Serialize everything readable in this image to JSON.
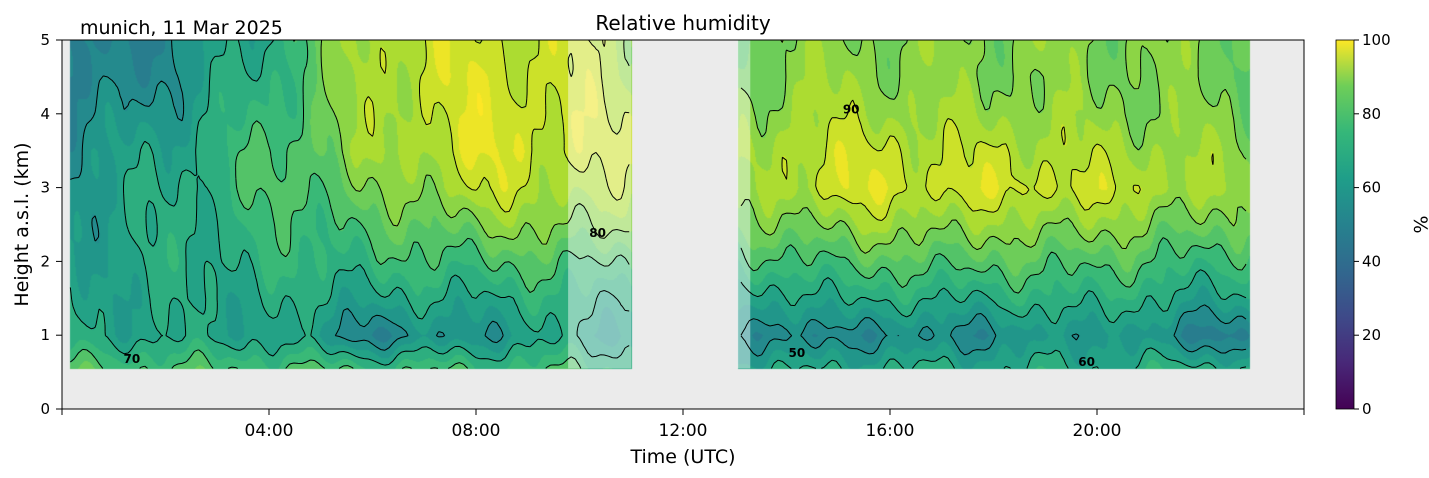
{
  "chart_data": {
    "type": "heatmap",
    "title": "Relative humidity",
    "corner_label": "munich, 11 Mar 2025",
    "xlabel": "Time (UTC)",
    "ylabel": "Height a.s.l. (km)",
    "xlim_hours": [
      0,
      24
    ],
    "ylim_km": [
      0,
      5
    ],
    "x_ticks": [
      {
        "hour": 0,
        "label": ""
      },
      {
        "hour": 4,
        "label": "04:00"
      },
      {
        "hour": 8,
        "label": "08:00"
      },
      {
        "hour": 12,
        "label": "12:00"
      },
      {
        "hour": 16,
        "label": "16:00"
      },
      {
        "hour": 20,
        "label": "20:00"
      },
      {
        "hour": 24,
        "label": ""
      }
    ],
    "y_ticks": [
      {
        "km": 0,
        "label": "0"
      },
      {
        "km": 1,
        "label": "1"
      },
      {
        "km": 2,
        "label": "2"
      },
      {
        "km": 3,
        "label": "3"
      },
      {
        "km": 4,
        "label": "4"
      },
      {
        "km": 5,
        "label": "5"
      }
    ],
    "colorbar": {
      "label": "%",
      "min": 0,
      "max": 100,
      "colormap": "viridis",
      "ticks": [
        {
          "value": 0,
          "label": "0"
        },
        {
          "value": 20,
          "label": "20"
        },
        {
          "value": 40,
          "label": "40"
        },
        {
          "value": 60,
          "label": "60"
        },
        {
          "value": 80,
          "label": "80"
        },
        {
          "value": 100,
          "label": "100"
        }
      ]
    },
    "background_color": "#ebebeb",
    "data_floor_km": 0.55,
    "data_segments": [
      {
        "start_hour": 0.15,
        "end_hour": 11.0
      },
      {
        "start_hour": 13.05,
        "end_hour": 22.95
      }
    ],
    "faded_intervals": [
      {
        "start_hour": 9.78,
        "end_hour": 11.0
      },
      {
        "start_hour": 13.05,
        "end_hour": 13.3
      }
    ],
    "profiles_hours": [
      0,
      2,
      4,
      6,
      8,
      10,
      13,
      14,
      15,
      16,
      17,
      18,
      19,
      20,
      21,
      22,
      23
    ],
    "profiles_heights_km": [
      0.55,
      1.0,
      1.5,
      2.0,
      2.5,
      3.0,
      3.5,
      4.0,
      4.5,
      5.0
    ],
    "rh_values": [
      [
        72,
        60,
        58,
        56,
        54,
        52,
        50,
        46,
        42,
        40
      ],
      [
        70,
        58,
        58,
        60,
        60,
        60,
        58,
        54,
        50,
        48
      ],
      [
        70,
        58,
        60,
        64,
        66,
        70,
        70,
        66,
        64,
        62
      ],
      [
        68,
        46,
        58,
        66,
        72,
        78,
        84,
        86,
        88,
        90
      ],
      [
        68,
        52,
        60,
        70,
        80,
        90,
        94,
        94,
        94,
        92
      ],
      [
        68,
        58,
        64,
        72,
        82,
        88,
        92,
        92,
        90,
        90
      ],
      [
        60,
        50,
        56,
        66,
        74,
        80,
        82,
        80,
        78,
        76
      ],
      [
        58,
        44,
        56,
        68,
        80,
        90,
        90,
        86,
        82,
        80
      ],
      [
        60,
        50,
        62,
        72,
        82,
        92,
        90,
        86,
        84,
        82
      ],
      [
        60,
        46,
        60,
        72,
        84,
        94,
        92,
        86,
        82,
        80
      ],
      [
        60,
        50,
        62,
        74,
        84,
        92,
        88,
        84,
        80,
        82
      ],
      [
        60,
        48,
        60,
        72,
        82,
        92,
        90,
        84,
        82,
        80
      ],
      [
        60,
        52,
        64,
        74,
        84,
        94,
        88,
        84,
        80,
        82
      ],
      [
        60,
        56,
        64,
        72,
        82,
        90,
        86,
        82,
        80,
        80
      ],
      [
        62,
        50,
        60,
        70,
        80,
        90,
        86,
        82,
        82,
        80
      ],
      [
        62,
        44,
        58,
        68,
        78,
        86,
        84,
        80,
        78,
        80
      ],
      [
        62,
        46,
        58,
        66,
        74,
        80,
        80,
        78,
        76,
        78
      ]
    ],
    "contour_levels": [
      50,
      60,
      70,
      80,
      90
    ],
    "contour_labels": [
      {
        "text": "70",
        "hour": 1.35,
        "km": 0.67
      },
      {
        "text": "80",
        "hour": 10.35,
        "km": 2.38
      },
      {
        "text": "90",
        "hour": 15.25,
        "km": 4.05
      },
      {
        "text": "50",
        "hour": 14.2,
        "km": 0.75
      },
      {
        "text": "60",
        "hour": 19.8,
        "km": 0.63
      }
    ]
  }
}
